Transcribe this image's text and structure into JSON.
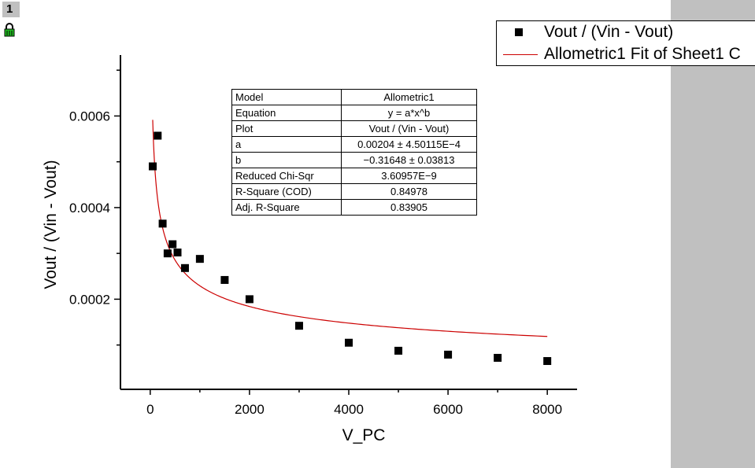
{
  "window": {
    "layer_number": "1"
  },
  "legend": {
    "scatter_label": "Vout / (Vin - Vout)",
    "fit_label": "Allometric1 Fit of Sheet1 C"
  },
  "colors": {
    "points": "#000000",
    "fit_line": "#cc0000",
    "side_panel": "#c0c0c0"
  },
  "icons": {
    "lock": "lock-icon"
  },
  "fit_table": [
    {
      "label": "Model",
      "value": "Allometric1"
    },
    {
      "label": "Equation",
      "value": "y = a*x^b"
    },
    {
      "label": "Plot",
      "value": "Vout / (Vin - Vout)"
    },
    {
      "label": "a",
      "value": "0.00204 ± 4.50115E−4"
    },
    {
      "label": "b",
      "value": "−0.31648 ± 0.03813"
    },
    {
      "label": "Reduced Chi-Sqr",
      "value": "3.60957E−9"
    },
    {
      "label": "R-Square (COD)",
      "value": "0.84978"
    },
    {
      "label": "Adj. R-Square",
      "value": "0.83905"
    }
  ],
  "chart_data": {
    "type": "scatter",
    "xlabel": "V_PC",
    "ylabel": "Vout / (Vin - Vout)",
    "xlim": [
      -600,
      8600
    ],
    "ylim": [
      3.2e-06,
      0.000733
    ],
    "x_ticks": [
      "0",
      "2000",
      "4000",
      "6000",
      "8000"
    ],
    "y_ticks": [
      "0.0002",
      "0.0004",
      "0.0006"
    ],
    "legend_position": "top-right",
    "grid": false,
    "series": [
      {
        "name": "Vout / (Vin - Vout)",
        "points": [
          {
            "x": 50,
            "y": 0.00049
          },
          {
            "x": 150,
            "y": 0.000557
          },
          {
            "x": 250,
            "y": 0.000365
          },
          {
            "x": 350,
            "y": 0.0003
          },
          {
            "x": 450,
            "y": 0.00032
          },
          {
            "x": 550,
            "y": 0.000302
          },
          {
            "x": 700,
            "y": 0.000268
          },
          {
            "x": 1000,
            "y": 0.000288
          },
          {
            "x": 1500,
            "y": 0.000242
          },
          {
            "x": 2000,
            "y": 0.0002
          },
          {
            "x": 3000,
            "y": 0.000142
          },
          {
            "x": 4000,
            "y": 0.000105
          },
          {
            "x": 5000,
            "y": 8.75e-05
          },
          {
            "x": 6000,
            "y": 7.9e-05
          },
          {
            "x": 7000,
            "y": 7.2e-05
          },
          {
            "x": 8000,
            "y": 6.5e-05
          }
        ]
      },
      {
        "name": "Allometric1 Fit of Sheet1 C",
        "fit": {
          "model": "y = a*x^b",
          "a": 0.00204,
          "b": -0.31648,
          "x_start": 50,
          "x_end": 8000
        }
      }
    ]
  }
}
